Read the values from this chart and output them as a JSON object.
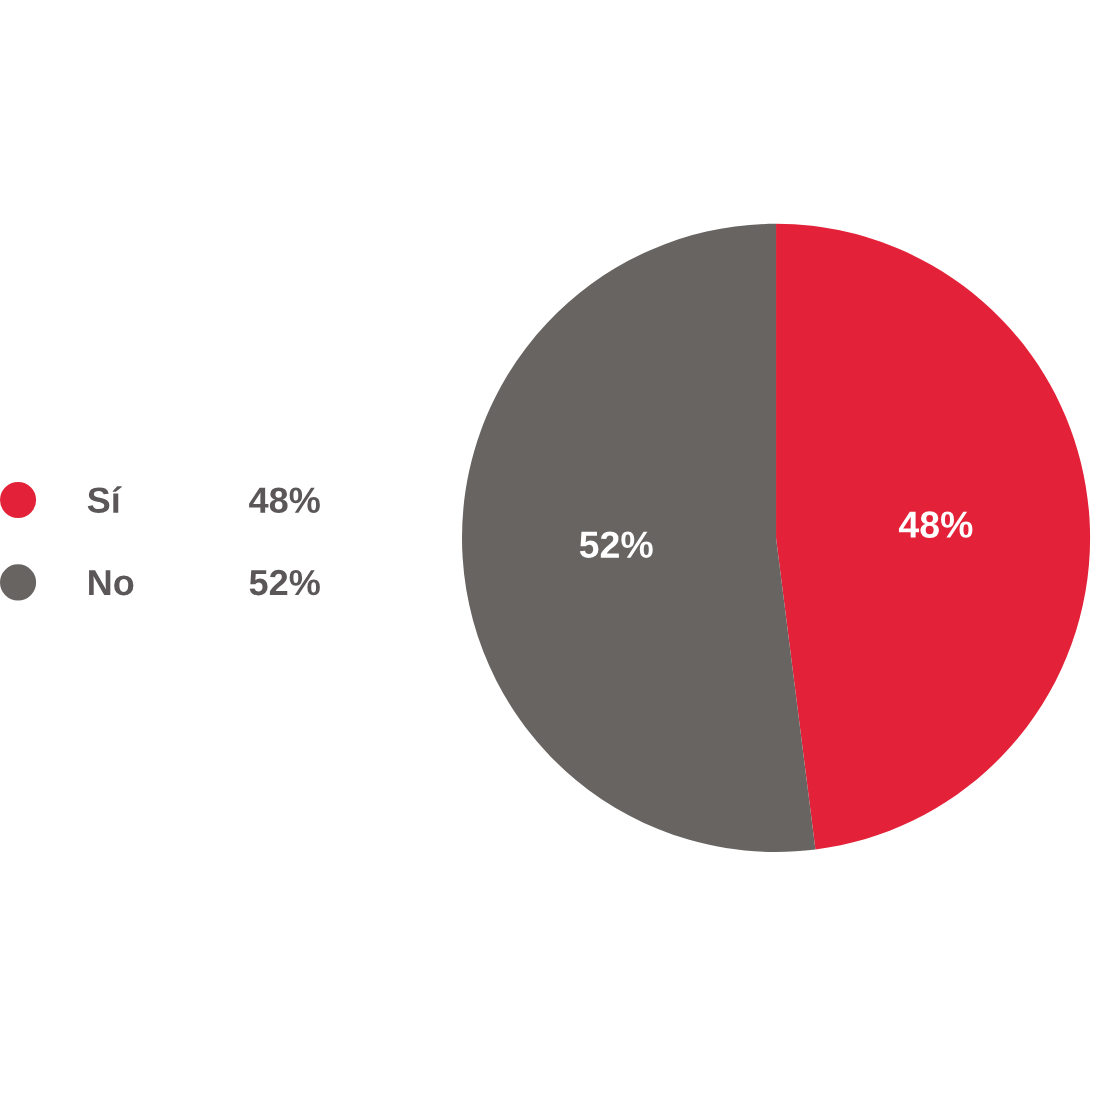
{
  "chart_data": {
    "type": "pie",
    "categories": [
      "Sí",
      "No"
    ],
    "values": [
      48,
      52
    ],
    "value_labels": [
      "48%",
      "52%"
    ],
    "colors": [
      "#e32239",
      "#686462"
    ],
    "legend": "left"
  }
}
